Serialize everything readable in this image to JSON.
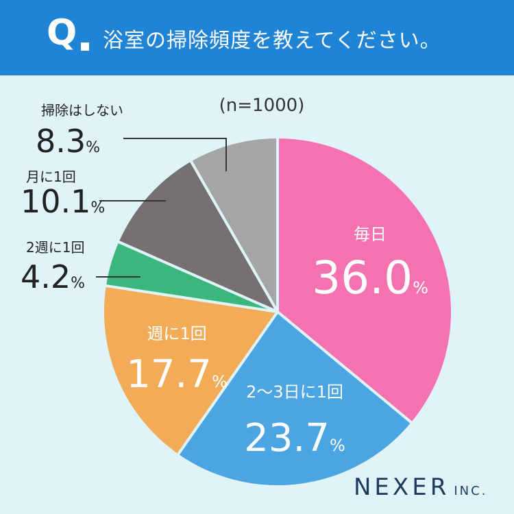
{
  "header": {
    "q_mark": "Q",
    "question": "浴室の掃除頻度を教えてください。"
  },
  "chart_data": {
    "type": "pie",
    "sample_size": "(n=1000)",
    "slices": [
      {
        "label": "毎日",
        "value": 36.0,
        "value_text": "36.0",
        "color": "#f472b0"
      },
      {
        "label": "2～3日に1回",
        "value": 23.7,
        "value_text": "23.7",
        "color": "#4aa5e2"
      },
      {
        "label": "週に1回",
        "value": 17.7,
        "value_text": "17.7",
        "color": "#f2ab56"
      },
      {
        "label": "2週に1回",
        "value": 4.2,
        "value_text": "4.2",
        "color": "#3bb77e"
      },
      {
        "label": "月に1回",
        "value": 10.1,
        "value_text": "10.1",
        "color": "#767171"
      },
      {
        "label": "掃除はしない",
        "value": 8.3,
        "value_text": "8.3",
        "color": "#a5a5a5"
      }
    ],
    "percent_symbol": "%"
  },
  "footer": {
    "brand": "NEXER",
    "brand_suffix": "INC."
  }
}
